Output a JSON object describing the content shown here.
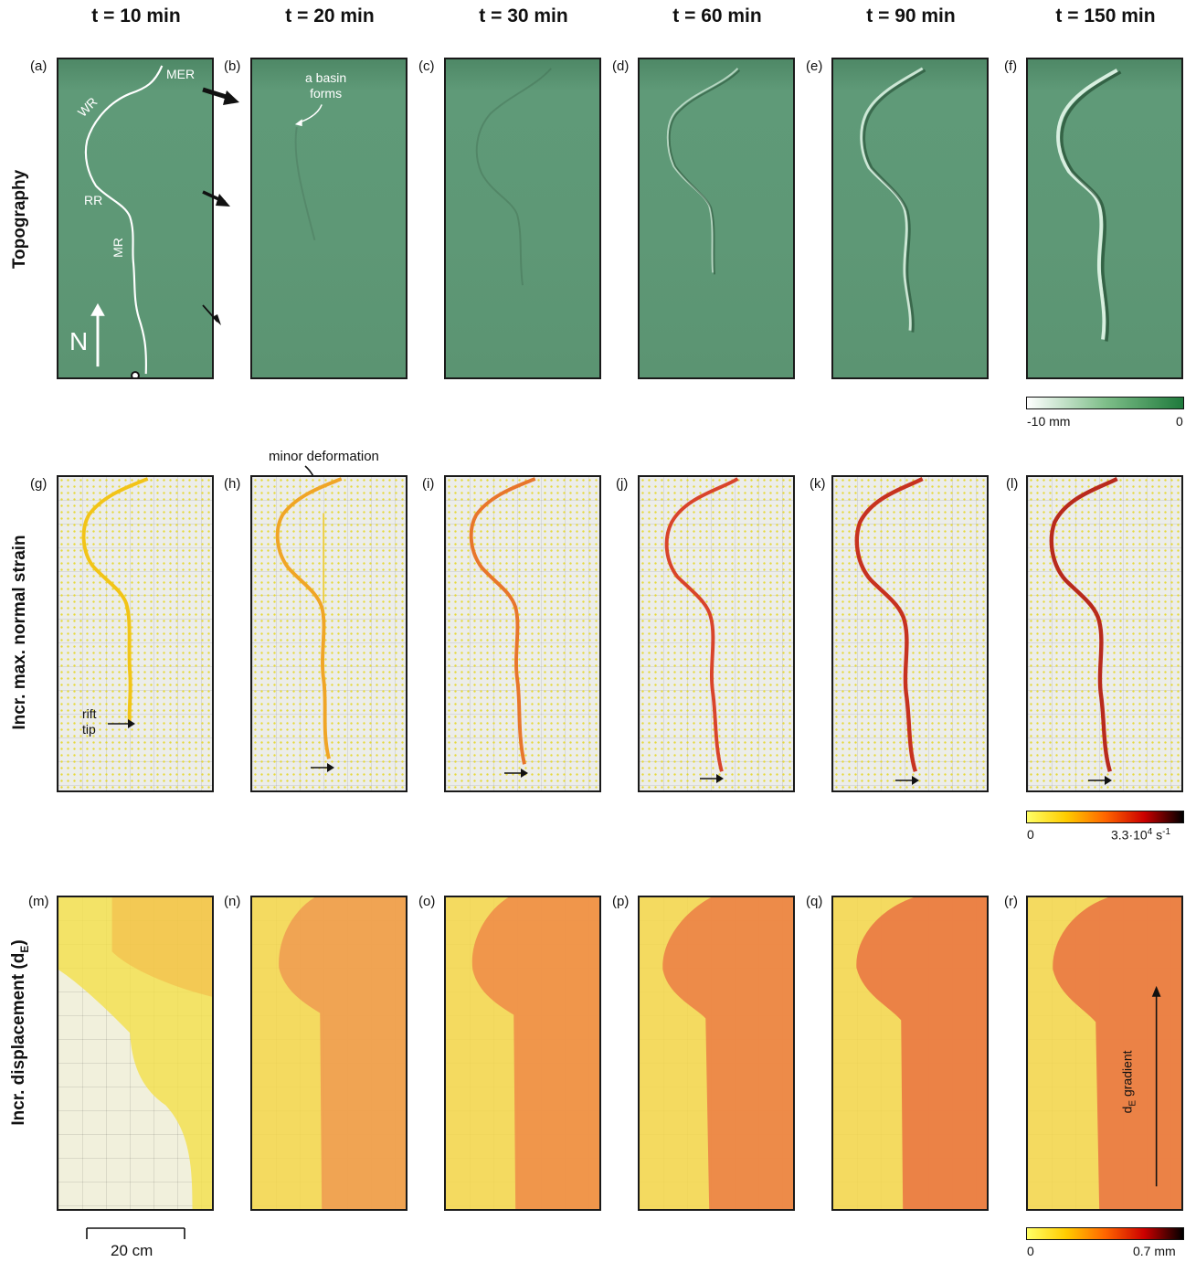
{
  "columns": [
    "t = 10 min",
    "t = 20 min",
    "t = 30 min",
    "t = 60 min",
    "t = 90 min",
    "t = 150 min"
  ],
  "rows": [
    "Topography",
    "Incr. max. normal strain",
    "Incr. displacement (d"
  ],
  "rows_sub": "E",
  "rows_close": ")",
  "panel_labels": [
    "(a)",
    "(b)",
    "(c)",
    "(d)",
    "(e)",
    "(f)",
    "(g)",
    "(h)",
    "(i)",
    "(j)",
    "(k)",
    "(l)",
    "(m)",
    "(n)",
    "(o)",
    "(p)",
    "(q)",
    "(r)"
  ],
  "annotations": {
    "mer": "MER",
    "wr": "WR",
    "rr": "RR",
    "mr": "MR",
    "north": "N",
    "basin_line1": "a basin",
    "basin_line2": "forms",
    "minor_deformation": "minor deformation",
    "rift_line1": "rift",
    "rift_line2": "tip",
    "gradient_main": "d",
    "gradient_sub": "E",
    "gradient_rest": " gradient"
  },
  "colorbars": {
    "topography": {
      "min_label": "-10 mm",
      "max_label": "0",
      "colors": [
        "#ffffff",
        "#7fbf8a",
        "#1f7a3c"
      ]
    },
    "strain": {
      "min_label": "0",
      "max_label": "3.3·10",
      "max_exp": "4",
      "max_unit": " s",
      "max_unit_exp": "-1",
      "colors": [
        "#ffff66",
        "#ffcc00",
        "#ff6600",
        "#cc0000",
        "#000000"
      ]
    },
    "displacement": {
      "min_label": "0",
      "max_label": "0.7 mm",
      "colors": [
        "#ffff66",
        "#ffcc00",
        "#ff6600",
        "#cc0000",
        "#000000"
      ]
    }
  },
  "scale_bar": {
    "label": "20 cm"
  },
  "colors": {
    "topo_green": "#5e9876",
    "rift_strain": "#d9442a",
    "disp_orange": "#ef8a44",
    "disp_yellow": "#f4e04a"
  }
}
